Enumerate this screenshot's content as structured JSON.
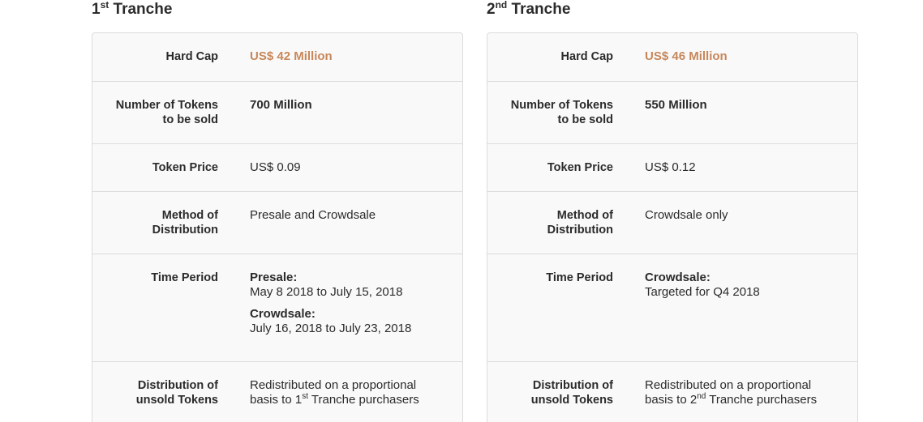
{
  "tranches": [
    {
      "title_num": "1",
      "title_sup": "st",
      "title_text": " Tranche",
      "labels": {
        "hard_cap_label": "Hard Cap",
        "tokens_label_1": "Number of Tokens",
        "tokens_label_2": "to be sold",
        "price_label": "Token Price",
        "method_label_1": "Method of",
        "method_label_2": "Distribution",
        "period_label": "Time Period",
        "unsold_label_1": "Distribution of",
        "unsold_label_2": "unsold Tokens"
      },
      "hard_cap": "US$ 42 Million",
      "tokens": "700 Million",
      "price": "US$ 0.09",
      "method": "Presale and Crowdsale",
      "phases": [
        {
          "name": "Presale:",
          "dates": "May 8 2018 to July 15, 2018"
        },
        {
          "name": "Crowdsale:",
          "dates": "July 16, 2018 to July 23, 2018"
        }
      ],
      "unsold_line1": "Redistributed on a proportional",
      "unsold_line2_pre": "basis to 1",
      "unsold_line2_sup": "st",
      "unsold_line2_post": " Tranche purchasers"
    },
    {
      "title_num": "2",
      "title_sup": "nd",
      "title_text": " Tranche",
      "labels": {
        "hard_cap_label": "Hard Cap",
        "tokens_label_1": "Number of Tokens",
        "tokens_label_2": "to be sold",
        "price_label": "Token Price",
        "method_label_1": "Method of",
        "method_label_2": "Distribution",
        "period_label": "Time Period",
        "unsold_label_1": "Distribution of",
        "unsold_label_2": "unsold Tokens"
      },
      "hard_cap": "US$ 46 Million",
      "tokens": "550 Million",
      "price": "US$ 0.12",
      "method": "Crowdsale only",
      "phases": [
        {
          "name": "Crowdsale:",
          "dates": "Targeted for Q4 2018"
        }
      ],
      "unsold_line1": "Redistributed on a proportional",
      "unsold_line2_pre": "basis to 2",
      "unsold_line2_sup": "nd",
      "unsold_line2_post": " Tranche purchasers"
    }
  ],
  "colors": {
    "accent": "#c8875a",
    "text": "#2b2b2b",
    "card_bg": "#f9f9f9",
    "border": "#dcdcdc"
  }
}
